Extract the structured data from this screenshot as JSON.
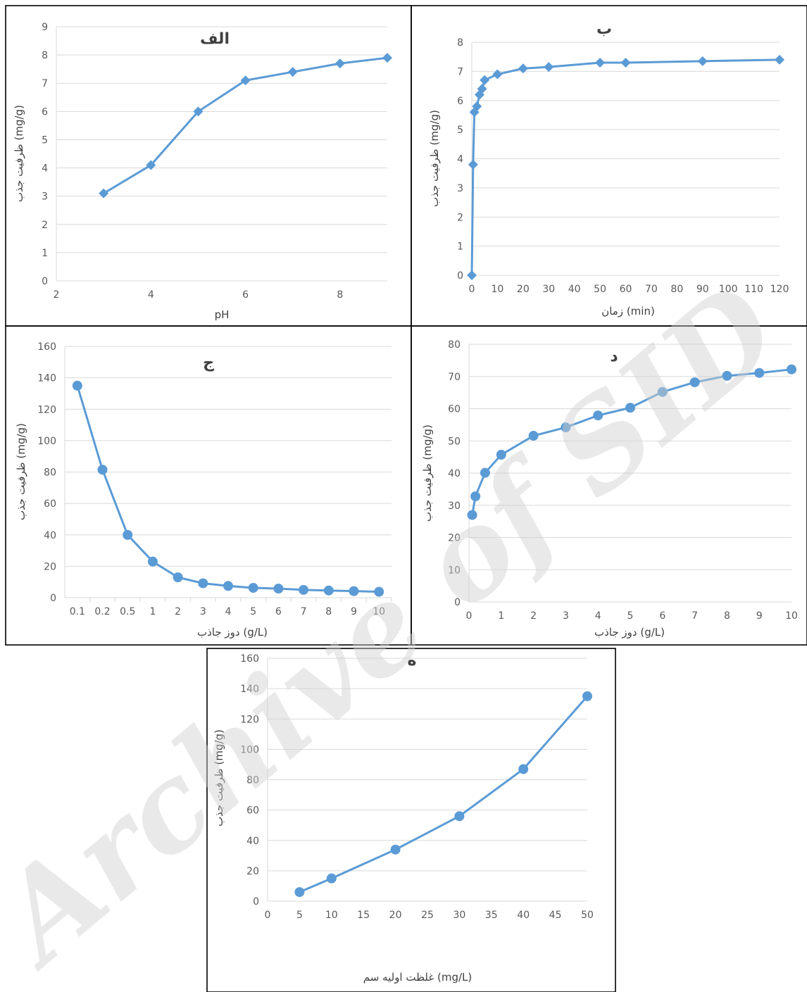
{
  "watermark": "Archive of SID",
  "series_color": "#5b9bd5",
  "chart_data": [
    {
      "id": "alef",
      "type": "line",
      "marker": "diamond",
      "title": "الف",
      "xlabel": "pH",
      "ylabel": "ظرفیت جذب (mg/g)",
      "x_axis": "linear",
      "xlim": [
        2,
        9
      ],
      "x_ticks": [
        "2",
        "4",
        "6",
        "8"
      ],
      "ylim": [
        0,
        9
      ],
      "y_ticks": [
        "0",
        "1",
        "2",
        "3",
        "4",
        "5",
        "6",
        "7",
        "8",
        "9"
      ],
      "grid": true,
      "x": [
        3,
        4,
        5,
        6,
        7,
        8,
        9
      ],
      "y": [
        3.1,
        4.1,
        6.0,
        7.1,
        7.4,
        7.7,
        7.9
      ]
    },
    {
      "id": "be",
      "type": "line",
      "marker": "diamond",
      "title": "ب",
      "xlabel": "زمان (min)",
      "ylabel": "ظرفیت جذب (mg/g)",
      "x_axis": "linear",
      "xlim": [
        0,
        120
      ],
      "x_ticks": [
        "0",
        "10",
        "20",
        "30",
        "40",
        "50",
        "60",
        "70",
        "80",
        "90",
        "100",
        "110",
        "120"
      ],
      "ylim": [
        0,
        8
      ],
      "y_ticks": [
        "0",
        "1",
        "2",
        "3",
        "4",
        "5",
        "6",
        "7",
        "8"
      ],
      "grid": true,
      "x": [
        0,
        0.5,
        1,
        2,
        3,
        4,
        5,
        10,
        20,
        30,
        50,
        60,
        90,
        120
      ],
      "y": [
        0,
        3.8,
        5.6,
        5.8,
        6.2,
        6.4,
        6.7,
        6.9,
        7.1,
        7.15,
        7.3,
        7.3,
        7.35,
        7.4
      ]
    },
    {
      "id": "jim",
      "type": "line",
      "marker": "circle",
      "title": "ج",
      "xlabel": "دوز جاذب (g/L)",
      "ylabel": "ظرفیت جذب (mg/g)",
      "x_axis": "category",
      "categories": [
        "0.1",
        "0.2",
        "0.5",
        "1",
        "2",
        "3",
        "4",
        "5",
        "6",
        "7",
        "8",
        "9",
        "10"
      ],
      "ylim": [
        0,
        160
      ],
      "y_ticks": [
        "0",
        "20",
        "40",
        "60",
        "80",
        "100",
        "120",
        "140",
        "160"
      ],
      "grid": true,
      "y": [
        135,
        81.5,
        40,
        23,
        13,
        9.2,
        7.5,
        6.3,
        5.8,
        5,
        4.6,
        4.2,
        3.8
      ]
    },
    {
      "id": "dal",
      "type": "line",
      "marker": "circle",
      "title": "د",
      "xlabel": "دوز جاذب (g/L)",
      "ylabel": "ظرفیت جذب (mg/g)",
      "x_axis": "linear",
      "xlim": [
        0,
        10
      ],
      "x_ticks": [
        "0",
        "1",
        "2",
        "3",
        "4",
        "5",
        "6",
        "7",
        "8",
        "9",
        "10"
      ],
      "ylim": [
        0,
        80
      ],
      "y_ticks": [
        "0",
        "10",
        "20",
        "30",
        "40",
        "50",
        "60",
        "70",
        "80"
      ],
      "grid": true,
      "x": [
        0.1,
        0.2,
        0.5,
        1,
        2,
        3,
        4,
        5,
        6,
        7,
        8,
        9,
        10
      ],
      "y": [
        27,
        32.8,
        40.1,
        45.7,
        51.6,
        54.2,
        57.9,
        60.3,
        65.2,
        68.2,
        70.2,
        71.1,
        72.2
      ]
    },
    {
      "id": "he",
      "type": "line",
      "marker": "circle",
      "title": "ه",
      "xlabel": "غلظت اولیه سم (mg/L)",
      "ylabel": "ظرفیت جذب (mg/g)",
      "x_axis": "linear",
      "xlim": [
        0,
        50
      ],
      "x_ticks": [
        "0",
        "5",
        "10",
        "15",
        "20",
        "25",
        "30",
        "35",
        "40",
        "45",
        "50"
      ],
      "ylim": [
        0,
        160
      ],
      "y_ticks": [
        "0",
        "20",
        "40",
        "60",
        "80",
        "100",
        "120",
        "140",
        "160"
      ],
      "grid": true,
      "x": [
        5,
        10,
        20,
        30,
        40,
        50
      ],
      "y": [
        6,
        15,
        34,
        56,
        87,
        135
      ]
    }
  ]
}
